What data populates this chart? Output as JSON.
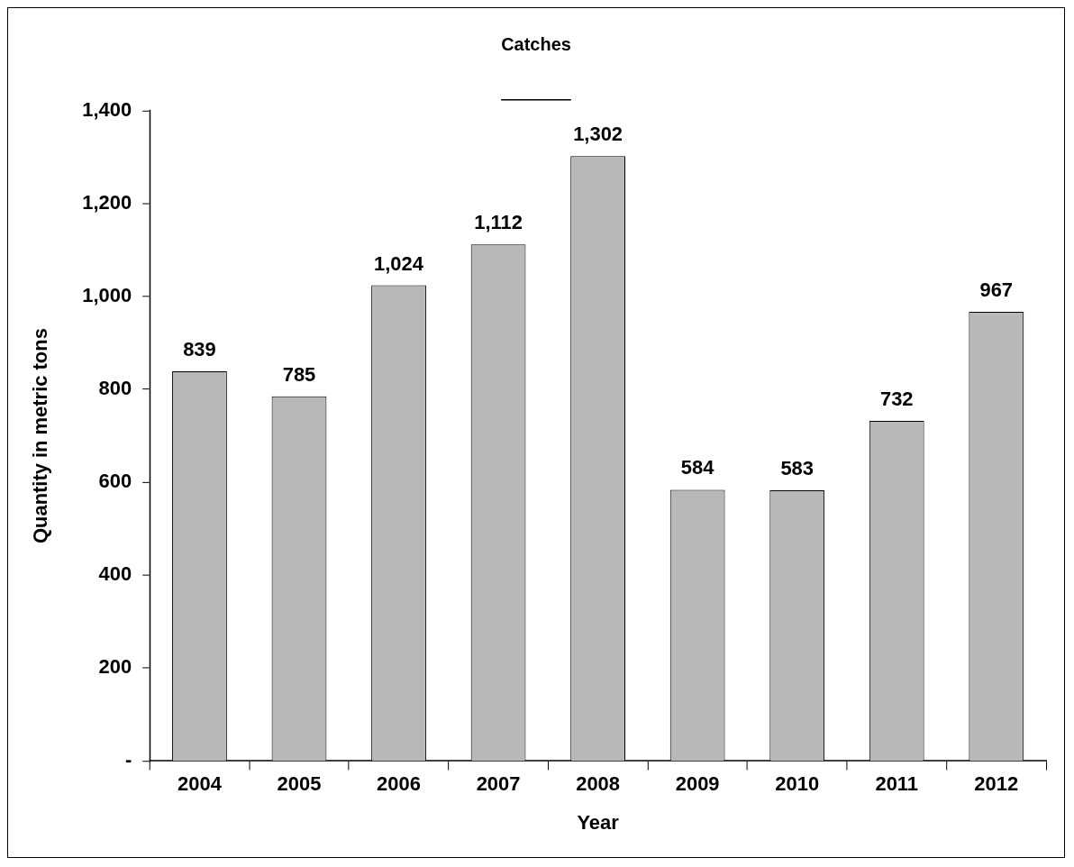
{
  "chart_data": {
    "type": "bar",
    "title": "Catches",
    "xlabel": "Year",
    "ylabel": "Quantity in metric tons",
    "categories": [
      "2004",
      "2005",
      "2006",
      "2007",
      "2008",
      "2009",
      "2010",
      "2011",
      "2012"
    ],
    "series": [
      {
        "color": "#b8b8b8",
        "values": [
          839,
          785,
          1024,
          1112,
          1302,
          584,
          583,
          732,
          967
        ],
        "value_labels": [
          "839",
          "785",
          "1,024",
          "1,112",
          "1,302",
          "584",
          "583",
          "732",
          "967"
        ]
      }
    ],
    "ylim": [
      0,
      1400
    ],
    "yticks": [
      {
        "value": 0,
        "label": "-"
      },
      {
        "value": 200,
        "label": "200"
      },
      {
        "value": 400,
        "label": "400"
      },
      {
        "value": 600,
        "label": "600"
      },
      {
        "value": 800,
        "label": "800"
      },
      {
        "value": 1000,
        "label": "1,000"
      },
      {
        "value": 1200,
        "label": "1,200"
      },
      {
        "value": 1400,
        "label": "1,400"
      }
    ],
    "grid": false,
    "legend": false
  }
}
